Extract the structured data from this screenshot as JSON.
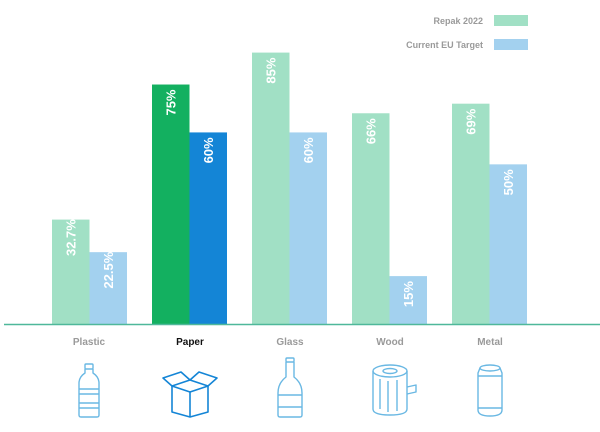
{
  "chart_data": {
    "type": "bar",
    "categories": [
      "Plastic",
      "Paper",
      "Glass",
      "Wood",
      "Metal"
    ],
    "highlighted_category": "Paper",
    "series": [
      {
        "name": "Repak 2022",
        "values": [
          32.7,
          75,
          85,
          66,
          69
        ],
        "value_labels": [
          "32.7%",
          "75%",
          "85%",
          "66%",
          "69%"
        ],
        "color": "#a1e0c5",
        "highlight_color": "#13b060"
      },
      {
        "name": "Current EU Target",
        "values": [
          22.5,
          60,
          60,
          15,
          50
        ],
        "value_labels": [
          "22.5%",
          "60%",
          "60%",
          "15%",
          "50%"
        ],
        "color": "#a3d1ef",
        "highlight_color": "#1485d6"
      }
    ],
    "ylim": [
      0,
      100
    ],
    "grid": false,
    "legend_position": "top-right",
    "axis_color": "#4fb89a",
    "title": "",
    "xlabel": "",
    "ylabel": ""
  },
  "icons": [
    "bottle-icon",
    "box-icon",
    "glass-bottle-icon",
    "log-icon",
    "can-icon"
  ],
  "icon_color": "#6ab8e3"
}
